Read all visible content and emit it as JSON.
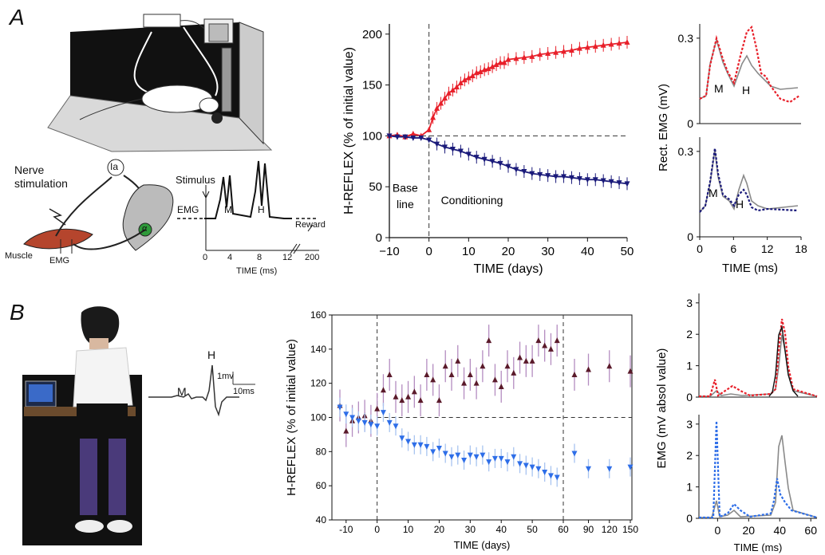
{
  "panels": {
    "a": "A",
    "b": "B"
  },
  "colors": {
    "up": "#e8202a",
    "down": "#1a1a7a",
    "up_b": "#5a1a2a",
    "down_b": "#2e6ee8",
    "err_up_b": "#b48cc0",
    "err_down_b": "#a8c4f0",
    "gray": "#8a8a8a"
  },
  "schematic_a": {
    "nerve_stimulation": "Nerve\nstimulation",
    "ia": "Ia",
    "alpha": "α",
    "muscle": "Muscle",
    "emg": "EMG",
    "stimulus": "Stimulus",
    "trace_emg": "EMG",
    "m": "M",
    "h": "H",
    "reward": "Reward",
    "xticks": [
      "0",
      "4",
      "8",
      "12",
      "200"
    ],
    "xlabel": "TIME (ms)"
  },
  "human_trace": {
    "h": "H",
    "m": "M",
    "scale_v": "1mv",
    "scale_t": "10ms"
  },
  "chart_data": [
    {
      "type": "line",
      "panel": "A-middle",
      "xlabel": "TIME (days)",
      "ylabel": "H-REFLEX (% of initial value)",
      "xlim": [
        -10,
        50
      ],
      "ylim": [
        0,
        210
      ],
      "xticks": [
        -10,
        0,
        10,
        20,
        30,
        40,
        50
      ],
      "yticks": [
        0,
        50,
        100,
        150,
        200
      ],
      "annotations": [
        "Base\nline",
        "Conditioning"
      ],
      "series": [
        {
          "x": [
            -10,
            -8,
            -6,
            -4,
            -2,
            0,
            1,
            2,
            3,
            4,
            5,
            6,
            7,
            8,
            9,
            10,
            11,
            12,
            13,
            14,
            15,
            16,
            17,
            18,
            19,
            20,
            22,
            24,
            26,
            28,
            30,
            32,
            34,
            36,
            38,
            40,
            42,
            44,
            46,
            48,
            50
          ],
          "values": [
            100,
            101,
            99,
            102,
            100,
            106,
            118,
            127,
            132,
            137,
            142,
            145,
            148,
            152,
            155,
            157,
            159,
            162,
            163,
            165,
            166,
            168,
            170,
            172,
            172,
            175,
            176,
            177,
            178,
            180,
            181,
            182,
            183,
            184,
            186,
            187,
            188,
            189,
            190,
            191,
            192
          ]
        },
        {
          "x": [
            -10,
            -8,
            -6,
            -4,
            -2,
            0,
            2,
            4,
            6,
            8,
            10,
            12,
            14,
            16,
            18,
            20,
            22,
            24,
            26,
            28,
            30,
            32,
            34,
            36,
            38,
            40,
            42,
            44,
            46,
            48,
            50
          ],
          "values": [
            100,
            99,
            99,
            98,
            98,
            96,
            92,
            89,
            87,
            85,
            82,
            79,
            77,
            75,
            73,
            70,
            67,
            65,
            63,
            62,
            61,
            60,
            60,
            59,
            58,
            57,
            57,
            56,
            55,
            54,
            53
          ]
        }
      ]
    },
    {
      "type": "line",
      "panel": "A-right-top",
      "ylabel": "Rect. EMG (mV)",
      "yticks": [
        0,
        0.3
      ],
      "labels": [
        "M",
        "H"
      ]
    },
    {
      "type": "line",
      "panel": "A-right-bottom",
      "xlabel": "TIME (ms)",
      "xticks": [
        0,
        6,
        12,
        18
      ],
      "yticks": [
        0,
        0.3
      ],
      "labels": [
        "M",
        "H"
      ]
    },
    {
      "type": "scatter",
      "panel": "B-middle",
      "xlabel": "TIME (days)",
      "ylabel": "H-REFLEX (% of initial value)",
      "ylim": [
        40,
        160
      ],
      "xticks": [
        "-10",
        "0",
        "10",
        "20",
        "30",
        "40",
        "50",
        "60",
        "90",
        "120",
        "150"
      ],
      "yticks": [
        40,
        60,
        80,
        100,
        120,
        140,
        160
      ],
      "series": [
        {
          "x": [
            -12,
            -10,
            -8,
            -6,
            -4,
            -2,
            0,
            2,
            4,
            6,
            8,
            10,
            12,
            14,
            16,
            18,
            20,
            22,
            24,
            26,
            28,
            30,
            32,
            34,
            36,
            38,
            40,
            42,
            44,
            46,
            48,
            50,
            52,
            54,
            56,
            58,
            70,
            90,
            120,
            150
          ],
          "values": [
            107,
            92,
            98,
            100,
            101,
            98,
            105,
            116,
            125,
            112,
            110,
            112,
            115,
            110,
            125,
            122,
            110,
            130,
            125,
            133,
            120,
            125,
            120,
            130,
            145,
            122,
            118,
            130,
            126,
            135,
            133,
            133,
            145,
            142,
            140,
            145,
            125,
            128,
            130,
            127
          ]
        },
        {
          "x": [
            -12,
            -10,
            -8,
            -6,
            -4,
            -2,
            0,
            2,
            4,
            6,
            8,
            10,
            12,
            14,
            16,
            18,
            20,
            22,
            24,
            26,
            28,
            30,
            32,
            34,
            36,
            38,
            40,
            42,
            44,
            46,
            48,
            50,
            52,
            54,
            56,
            58,
            70,
            90,
            120,
            150
          ],
          "values": [
            106,
            102,
            100,
            98,
            97,
            96,
            95,
            103,
            97,
            95,
            88,
            86,
            84,
            84,
            83,
            80,
            82,
            79,
            77,
            78,
            75,
            78,
            77,
            78,
            74,
            76,
            76,
            74,
            77,
            73,
            72,
            71,
            70,
            68,
            66,
            65,
            79,
            70,
            70,
            71
          ]
        }
      ]
    },
    {
      "type": "line",
      "panel": "B-right-top",
      "ylabel": "EMG (mV absol value)",
      "yticks": [
        0,
        1,
        2,
        3
      ]
    },
    {
      "type": "line",
      "panel": "B-right-bottom",
      "xlabel": "TIME (ms)",
      "xticks": [
        0,
        20,
        40,
        60
      ],
      "yticks": [
        0,
        1,
        2,
        3
      ]
    }
  ]
}
